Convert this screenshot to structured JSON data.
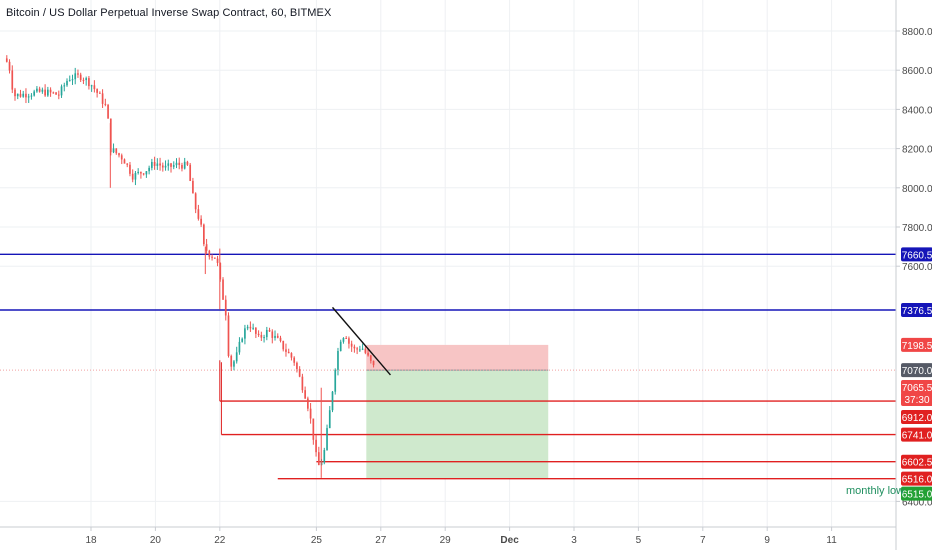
{
  "chart_data": {
    "type": "candlestick",
    "title": "Bitcoin / US Dollar Perpetual Inverse Swap Contract, 60, BITMEX",
    "interval": "60",
    "exchange": "BITMEX",
    "ylim": [
      6415,
      8905
    ],
    "y_ticks": [
      8800.0,
      8600.0,
      8400.0,
      8200.0,
      8000.0,
      7800.0,
      7600.0,
      6400.0
    ],
    "x_ticks": [
      {
        "label": "18",
        "day": 18
      },
      {
        "label": "20",
        "day": 20
      },
      {
        "label": "22",
        "day": 22
      },
      {
        "label": "25",
        "day": 25
      },
      {
        "label": "27",
        "day": 27
      },
      {
        "label": "29",
        "day": 29
      },
      {
        "label": "Dec",
        "day": 31
      },
      {
        "label": "3",
        "day": 33
      },
      {
        "label": "5",
        "day": 35
      },
      {
        "label": "7",
        "day": 37
      },
      {
        "label": "9",
        "day": 39
      },
      {
        "label": "11",
        "day": 41
      }
    ],
    "xlim_days": [
      15.3,
      43.3
    ],
    "price_path": [
      [
        15.3,
        8660
      ],
      [
        15.45,
        8630
      ],
      [
        15.6,
        8470
      ],
      [
        16.0,
        8480
      ],
      [
        16.5,
        8490
      ],
      [
        17.0,
        8475
      ],
      [
        17.3,
        8560
      ],
      [
        17.7,
        8570
      ],
      [
        18.0,
        8530
      ],
      [
        18.3,
        8460
      ],
      [
        18.5,
        8400
      ],
      [
        18.6,
        8200
      ],
      [
        19.0,
        8150
      ],
      [
        19.3,
        8060
      ],
      [
        19.7,
        8090
      ],
      [
        20.0,
        8130
      ],
      [
        20.3,
        8100
      ],
      [
        20.7,
        8120
      ],
      [
        21.0,
        8110
      ],
      [
        21.2,
        7920
      ],
      [
        21.4,
        7820
      ],
      [
        21.5,
        7700
      ],
      [
        21.7,
        7660
      ],
      [
        21.9,
        7640
      ],
      [
        22.0,
        7530
      ],
      [
        22.2,
        7350
      ],
      [
        22.3,
        7080
      ],
      [
        22.5,
        7130
      ],
      [
        22.7,
        7250
      ],
      [
        22.9,
        7310
      ],
      [
        23.2,
        7230
      ],
      [
        23.5,
        7270
      ],
      [
        23.8,
        7220
      ],
      [
        24.0,
        7180
      ],
      [
        24.3,
        7120
      ],
      [
        24.5,
        7020
      ],
      [
        24.7,
        6920
      ],
      [
        24.85,
        6790
      ],
      [
        25.0,
        6620
      ],
      [
        25.1,
        6570
      ],
      [
        25.25,
        6660
      ],
      [
        25.45,
        6900
      ],
      [
        25.6,
        7110
      ],
      [
        25.75,
        7230
      ],
      [
        25.9,
        7260
      ],
      [
        26.0,
        7210
      ],
      [
        26.2,
        7170
      ],
      [
        26.4,
        7190
      ],
      [
        26.55,
        7150
      ],
      [
        26.75,
        7090
      ],
      [
        26.85,
        7070
      ]
    ],
    "candle_step_days": 0.085,
    "horizontal_levels": [
      {
        "name": "resistance-1",
        "price": 7660.5,
        "color": "#1515b8",
        "label": "7660.5",
        "extend": "full"
      },
      {
        "name": "resistance-2",
        "price": 7376.5,
        "color": "#1515b8",
        "label": "7376.5",
        "extend": "full"
      },
      {
        "name": "support-6912",
        "price": 6912.0,
        "color": "#e02020",
        "label": "6912.0",
        "start_day": 22.0
      },
      {
        "name": "support-6741",
        "price": 6741.0,
        "color": "#e02020",
        "label": "6741.0",
        "start_day": 22.05
      },
      {
        "name": "support-6602",
        "price": 6602.5,
        "color": "#e02020",
        "label": "6602.5",
        "start_day": 25.0
      },
      {
        "name": "monthly-low",
        "price": 6516.0,
        "color": "#e02020",
        "label": "6516.0",
        "start_day": 23.8
      }
    ],
    "trendline": {
      "from": {
        "day": 25.5,
        "price": 7390
      },
      "to": {
        "day": 27.3,
        "price": 7045
      }
    },
    "position": {
      "type": "long",
      "start_day": 26.55,
      "end_day": 32.2,
      "entry": 7070.0,
      "stop": 7198.5,
      "target": 6515.0,
      "risk_color": "#f7c5c5",
      "reward_color": "#cfe9cd"
    },
    "price_labels": [
      {
        "text": "7660.5",
        "price": 7660.5,
        "bg": "#1515b8",
        "fg": "#ffffff"
      },
      {
        "text": "7376.5",
        "price": 7376.5,
        "bg": "#1515b8",
        "fg": "#ffffff"
      },
      {
        "text": "7198.5",
        "price": 7198.5,
        "bg": "#f04646",
        "fg": "#ffffff"
      },
      {
        "text": "7070.0",
        "price": 7070.0,
        "bg": "#555a66",
        "fg": "#ffffff"
      },
      {
        "text": "7065.5",
        "price": 7065.5,
        "bg": "#f04646",
        "fg": "#ffffff"
      },
      {
        "text": "37:30",
        "price": 6920.0,
        "bg": "#f04646",
        "fg": "#ffffff"
      },
      {
        "text": "6912.0",
        "price": 6912.0,
        "bg": "#e02020",
        "fg": "#ffffff"
      },
      {
        "text": "6741.0",
        "price": 6741.0,
        "bg": "#e02020",
        "fg": "#ffffff"
      },
      {
        "text": "6602.5",
        "price": 6602.5,
        "bg": "#e02020",
        "fg": "#ffffff"
      },
      {
        "text": "6516.0",
        "price": 6516.0,
        "bg": "#e02020",
        "fg": "#ffffff"
      },
      {
        "text": "6515.0",
        "price": 6515.0,
        "bg": "#22a033",
        "fg": "#ffffff"
      }
    ],
    "annotations": [
      {
        "text": "monthly low"
      }
    ],
    "colors": {
      "up": "#26a69a",
      "down": "#ef5350",
      "grid": "#eef0f3",
      "axis_text": "#4a4a4a",
      "current_price_line": "#f0a0a0"
    }
  }
}
